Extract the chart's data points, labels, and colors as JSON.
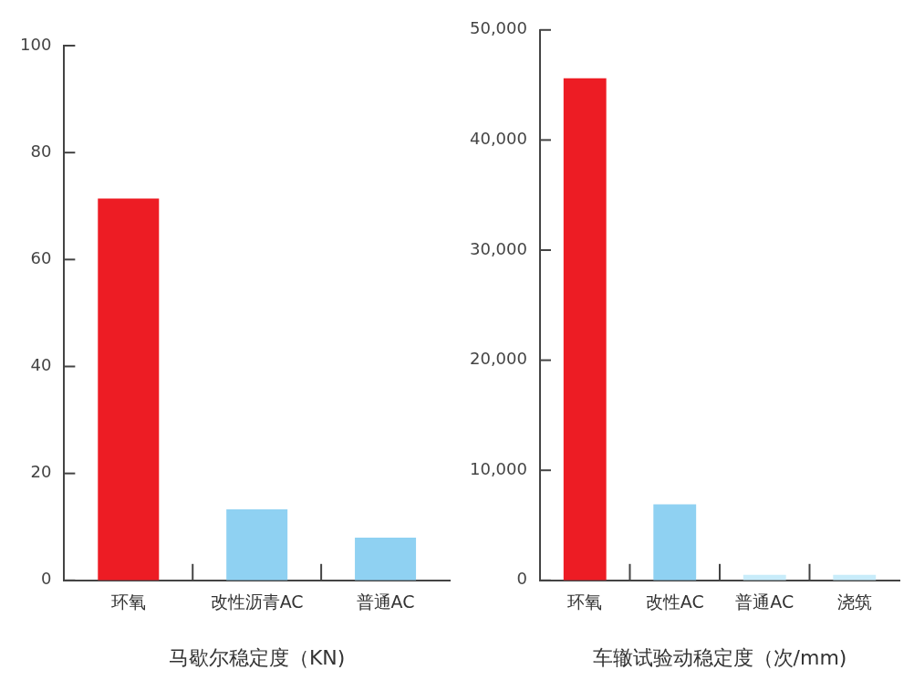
{
  "chart_data": [
    {
      "type": "bar",
      "xlabel": "马歇尔稳定度（KN)",
      "categories": [
        "环氧",
        "改性沥青AC",
        "普通AC"
      ],
      "values": [
        71.4,
        13.3,
        8.0
      ],
      "colors": [
        "#ed1c24",
        "#8fd1f2",
        "#8fd1f2"
      ],
      "ylim": [
        0,
        100
      ],
      "yticks": [
        0,
        20,
        40,
        60,
        80,
        100
      ]
    },
    {
      "type": "bar",
      "xlabel": "车辙试验动稳定度（次/mm)",
      "categories": [
        "环氧",
        "改性AC",
        "普通AC",
        "浇筑"
      ],
      "values": [
        45600,
        6900,
        500,
        500
      ],
      "colors": [
        "#ed1c24",
        "#8fd1f2",
        "#c8ecfa",
        "#c8ecfa"
      ],
      "ylim": [
        0,
        50000
      ],
      "yticks": [
        0,
        {
          "value": 10000,
          "label": "10,000"
        },
        {
          "value": 20000,
          "label": "20,000"
        },
        {
          "value": 30000,
          "label": "30,000"
        },
        {
          "value": 40000,
          "label": "40,000"
        },
        {
          "value": 50000,
          "label": "50,000"
        }
      ]
    }
  ]
}
